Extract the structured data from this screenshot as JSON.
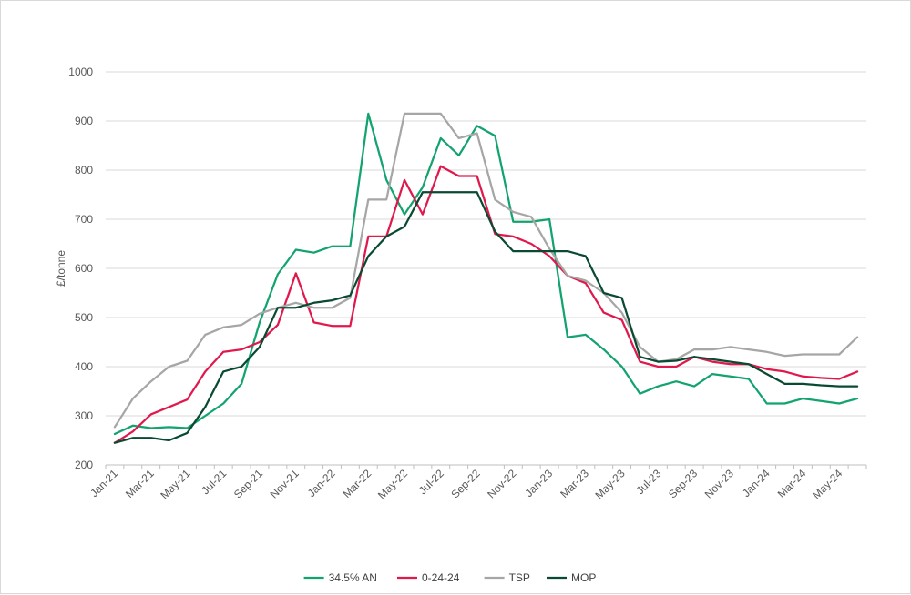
{
  "chart_data": {
    "type": "line",
    "title": "",
    "xlabel": "",
    "ylabel": "£/tonne",
    "ylim": [
      200,
      1000
    ],
    "yticks": [
      200,
      300,
      400,
      500,
      600,
      700,
      800,
      900,
      1000
    ],
    "grid": "horizontal",
    "legend_position": "bottom",
    "x": [
      "Jan-21",
      "Feb-21",
      "Mar-21",
      "Apr-21",
      "May-21",
      "Jun-21",
      "Jul-21",
      "Aug-21",
      "Sep-21",
      "Oct-21",
      "Nov-21",
      "Dec-21",
      "Jan-22",
      "Feb-22",
      "Mar-22",
      "Apr-22",
      "May-22",
      "Jun-22",
      "Jul-22",
      "Aug-22",
      "Sep-22",
      "Oct-22",
      "Nov-22",
      "Dec-22",
      "Jan-23",
      "Feb-23",
      "Mar-23",
      "Apr-23",
      "May-23",
      "Jun-23",
      "Jul-23",
      "Aug-23",
      "Sep-23",
      "Oct-23",
      "Nov-23",
      "Dec-23",
      "Jan-24",
      "Feb-24",
      "Mar-24",
      "Apr-24",
      "May-24",
      "Jun-24"
    ],
    "xtick_labels": [
      "Jan-21",
      "Mar-21",
      "May-21",
      "Jul-21",
      "Sep-21",
      "Nov-21",
      "Jan-22",
      "Mar-22",
      "May-22",
      "Jul-22",
      "Sep-22",
      "Nov-22",
      "Jan-23",
      "Mar-23",
      "May-23",
      "Jul-23",
      "Sep-23",
      "Nov-23",
      "Jan-24",
      "Mar-24",
      "May-24"
    ],
    "series": [
      {
        "name": "34.5% AN",
        "color": "#13a36f",
        "values": [
          263,
          280,
          275,
          277,
          275,
          300,
          325,
          365,
          490,
          588,
          638,
          632,
          645,
          645,
          915,
          780,
          710,
          765,
          865,
          830,
          890,
          870,
          695,
          695,
          700,
          460,
          465,
          435,
          400,
          345,
          360,
          370,
          360,
          385,
          380,
          375,
          325,
          325,
          335,
          330,
          325,
          335
        ]
      },
      {
        "name": "0-24-24",
        "color": "#e0194d",
        "values": [
          245,
          268,
          303,
          318,
          333,
          390,
          430,
          435,
          450,
          485,
          590,
          490,
          483,
          483,
          665,
          665,
          780,
          710,
          808,
          788,
          788,
          670,
          665,
          650,
          625,
          585,
          570,
          510,
          495,
          410,
          400,
          400,
          420,
          410,
          405,
          405,
          395,
          390,
          380,
          377,
          375,
          390
        ]
      },
      {
        "name": "TSP",
        "color": "#a6a6a6",
        "values": [
          277,
          335,
          370,
          400,
          412,
          465,
          480,
          485,
          508,
          520,
          530,
          520,
          520,
          540,
          740,
          740,
          915,
          915,
          915,
          865,
          875,
          740,
          715,
          705,
          640,
          585,
          575,
          550,
          510,
          440,
          410,
          415,
          435,
          435,
          440,
          435,
          430,
          422,
          425,
          425,
          425,
          460
        ]
      },
      {
        "name": "MOP",
        "color": "#0a4a32",
        "values": [
          245,
          255,
          255,
          250,
          265,
          318,
          390,
          400,
          440,
          520,
          520,
          530,
          535,
          545,
          625,
          665,
          685,
          755,
          755,
          755,
          755,
          675,
          635,
          635,
          635,
          635,
          625,
          550,
          540,
          420,
          410,
          412,
          420,
          415,
          410,
          405,
          385,
          365,
          365,
          362,
          360,
          360
        ]
      }
    ]
  }
}
